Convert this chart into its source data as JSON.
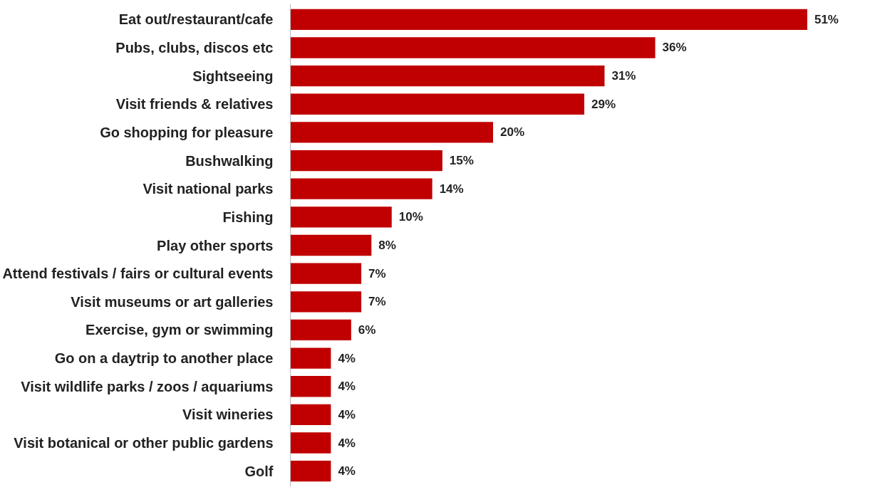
{
  "chart_data": {
    "type": "bar",
    "orientation": "horizontal",
    "categories": [
      "Eat out/restaurant/cafe",
      "Pubs, clubs, discos etc",
      "Sightseeing",
      "Visit friends & relatives",
      "Go shopping for pleasure",
      "Bushwalking",
      "Visit national parks",
      "Fishing",
      "Play other sports",
      "Attend festivals / fairs or cultural events",
      "Visit museums or art galleries",
      "Exercise, gym or swimming",
      "Go on a daytrip to another place",
      "Visit wildlife parks / zoos / aquariums",
      "Visit wineries",
      "Visit botanical or other public gardens",
      "Golf"
    ],
    "values": [
      51,
      36,
      31,
      29,
      20,
      15,
      14,
      10,
      8,
      7,
      7,
      6,
      4,
      4,
      4,
      4,
      4
    ],
    "value_labels": [
      "51%",
      "36%",
      "31%",
      "29%",
      "20%",
      "15%",
      "14%",
      "10%",
      "8%",
      "7%",
      "7%",
      "6%",
      "4%",
      "4%",
      "4%",
      "4%",
      "4%"
    ],
    "color": "#c00000",
    "grid": false,
    "tick_labels": "y"
  }
}
